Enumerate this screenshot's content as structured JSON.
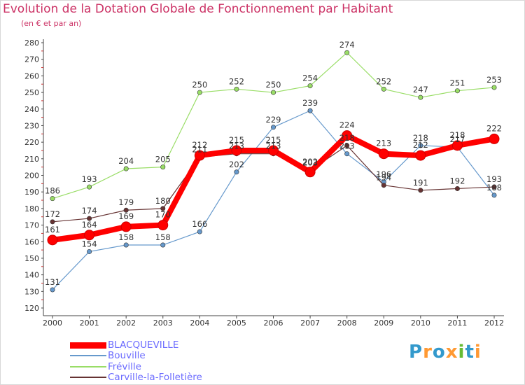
{
  "title": "Evolution de la Dotation Globale de Fonctionnement par Habitant",
  "subtitle": "(en € et par an)",
  "logo": {
    "text": "Proxiti",
    "colors": [
      "#3399cc",
      "#ff9933",
      "#3399cc",
      "#ff9933",
      "#66bb33",
      "#3399cc",
      "#ff9933"
    ]
  },
  "chart_data": {
    "type": "line",
    "x": [
      "2000",
      "2001",
      "2002",
      "2003",
      "2004",
      "2005",
      "2006",
      "2007",
      "2008",
      "2009",
      "2010",
      "2011",
      "2012"
    ],
    "ylim": [
      120,
      280
    ],
    "yticks": [
      "120",
      "130",
      "140",
      "150",
      "160",
      "170",
      "180",
      "190",
      "200",
      "210",
      "220",
      "230",
      "240",
      "250",
      "260",
      "270",
      "280"
    ],
    "grid": false,
    "legend_position": "bottom-left",
    "series": [
      {
        "name": "BLACQUEVILLE",
        "color": "#ff0000",
        "values": [
          161,
          164,
          169,
          170,
          212,
          215,
          215,
          202,
          224,
          213,
          212,
          218,
          222
        ]
      },
      {
        "name": "Bouville",
        "color": "#6699cc",
        "values": [
          131,
          154,
          158,
          158,
          166,
          202,
          229,
          239,
          213,
          196,
          218,
          217,
          188
        ]
      },
      {
        "name": "Fréville",
        "color": "#99dd66",
        "values": [
          186,
          193,
          204,
          205,
          250,
          252,
          250,
          254,
          274,
          252,
          247,
          251,
          253
        ]
      },
      {
        "name": "Carville-la-Folletière",
        "color": "#663333",
        "values": [
          172,
          174,
          179,
          180,
          211,
          213,
          213,
          203,
          218,
          194,
          191,
          192,
          193
        ]
      }
    ]
  }
}
